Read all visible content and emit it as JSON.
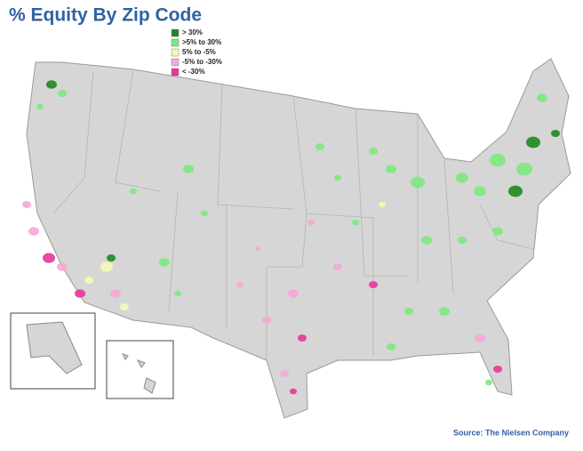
{
  "header": {
    "title": "% Equity By Zip Code"
  },
  "legend": {
    "items": [
      {
        "label": "> 30%",
        "color": "#1e8a1e"
      },
      {
        "label": ">5% to 30%",
        "color": "#7ee87e"
      },
      {
        "label": "5% to -5%",
        "color": "#f8f8b0"
      },
      {
        "label": "-5% to -30%",
        "color": "#f5a8d6"
      },
      {
        "label": "< -30%",
        "color": "#e5369a"
      }
    ]
  },
  "footer": {
    "source": "Source: The Nielsen Company"
  }
}
